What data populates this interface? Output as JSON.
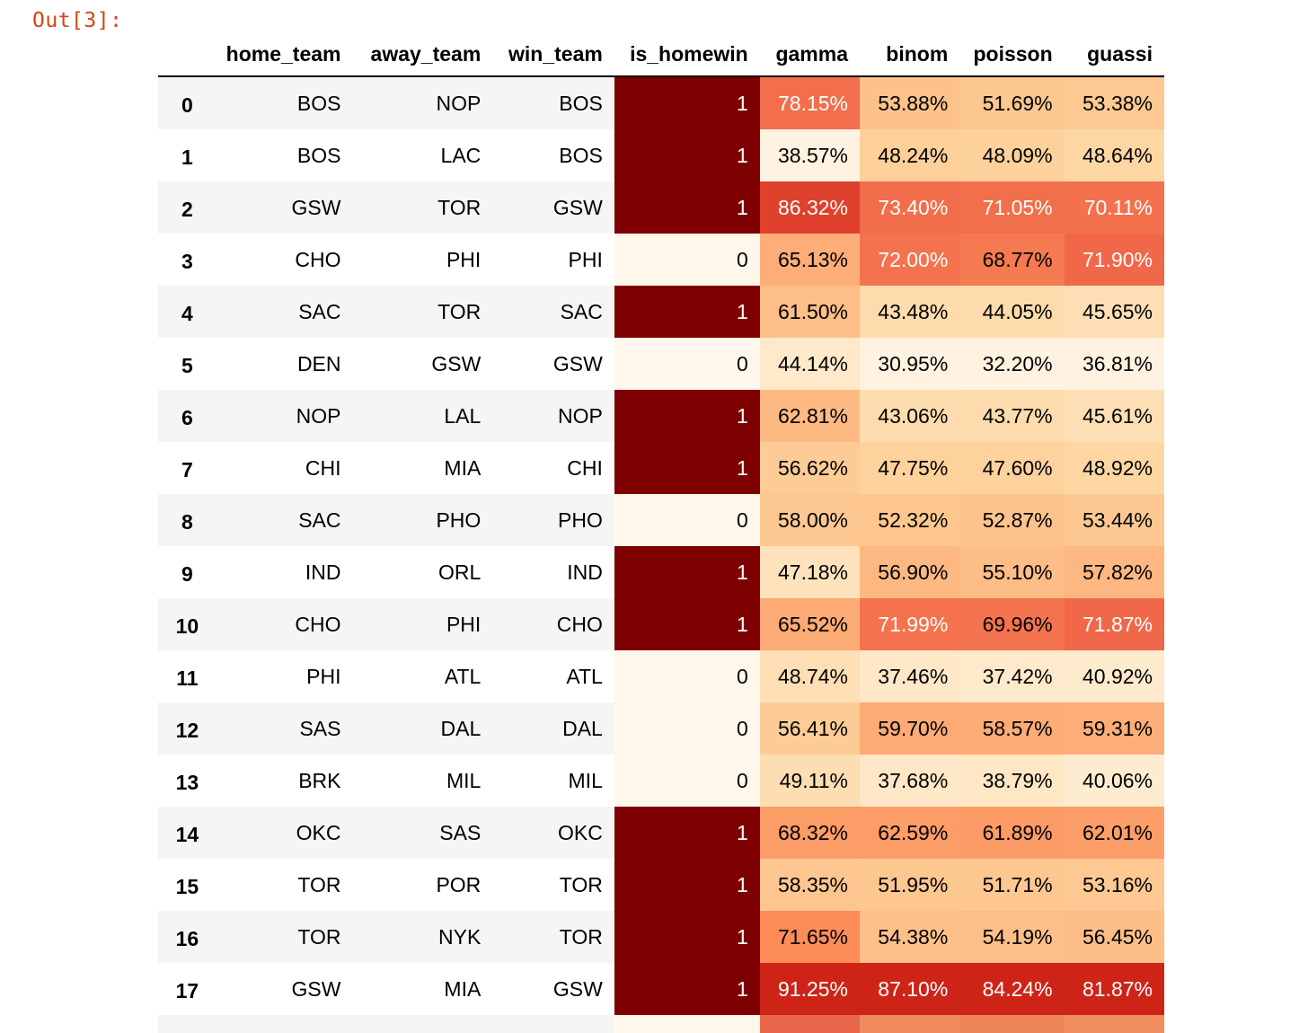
{
  "cell_prompt": "Out[3]:",
  "colors": {
    "prompt": "#D84315",
    "colormap": "OrRd",
    "homewin_true": "#7f0000",
    "homewin_false": "#fff7ec"
  },
  "columns": [
    "home_team",
    "away_team",
    "win_team",
    "is_homewin",
    "gamma",
    "binom",
    "poisson",
    "guassi"
  ],
  "rows": [
    {
      "index": "0",
      "home_team": "BOS",
      "away_team": "NOP",
      "win_team": "BOS",
      "is_homewin": "1",
      "gamma": "78.15%",
      "binom": "53.88%",
      "poisson": "51.69%",
      "guassi": "53.38%"
    },
    {
      "index": "1",
      "home_team": "BOS",
      "away_team": "LAC",
      "win_team": "BOS",
      "is_homewin": "1",
      "gamma": "38.57%",
      "binom": "48.24%",
      "poisson": "48.09%",
      "guassi": "48.64%"
    },
    {
      "index": "2",
      "home_team": "GSW",
      "away_team": "TOR",
      "win_team": "GSW",
      "is_homewin": "1",
      "gamma": "86.32%",
      "binom": "73.40%",
      "poisson": "71.05%",
      "guassi": "70.11%"
    },
    {
      "index": "3",
      "home_team": "CHO",
      "away_team": "PHI",
      "win_team": "PHI",
      "is_homewin": "0",
      "gamma": "65.13%",
      "binom": "72.00%",
      "poisson": "68.77%",
      "guassi": "71.90%"
    },
    {
      "index": "4",
      "home_team": "SAC",
      "away_team": "TOR",
      "win_team": "SAC",
      "is_homewin": "1",
      "gamma": "61.50%",
      "binom": "43.48%",
      "poisson": "44.05%",
      "guassi": "45.65%"
    },
    {
      "index": "5",
      "home_team": "DEN",
      "away_team": "GSW",
      "win_team": "GSW",
      "is_homewin": "0",
      "gamma": "44.14%",
      "binom": "30.95%",
      "poisson": "32.20%",
      "guassi": "36.81%"
    },
    {
      "index": "6",
      "home_team": "NOP",
      "away_team": "LAL",
      "win_team": "NOP",
      "is_homewin": "1",
      "gamma": "62.81%",
      "binom": "43.06%",
      "poisson": "43.77%",
      "guassi": "45.61%"
    },
    {
      "index": "7",
      "home_team": "CHI",
      "away_team": "MIA",
      "win_team": "CHI",
      "is_homewin": "1",
      "gamma": "56.62%",
      "binom": "47.75%",
      "poisson": "47.60%",
      "guassi": "48.92%"
    },
    {
      "index": "8",
      "home_team": "SAC",
      "away_team": "PHO",
      "win_team": "PHO",
      "is_homewin": "0",
      "gamma": "58.00%",
      "binom": "52.32%",
      "poisson": "52.87%",
      "guassi": "53.44%"
    },
    {
      "index": "9",
      "home_team": "IND",
      "away_team": "ORL",
      "win_team": "IND",
      "is_homewin": "1",
      "gamma": "47.18%",
      "binom": "56.90%",
      "poisson": "55.10%",
      "guassi": "57.82%"
    },
    {
      "index": "10",
      "home_team": "CHO",
      "away_team": "PHI",
      "win_team": "CHO",
      "is_homewin": "1",
      "gamma": "65.52%",
      "binom": "71.99%",
      "poisson": "69.96%",
      "guassi": "71.87%"
    },
    {
      "index": "11",
      "home_team": "PHI",
      "away_team": "ATL",
      "win_team": "ATL",
      "is_homewin": "0",
      "gamma": "48.74%",
      "binom": "37.46%",
      "poisson": "37.42%",
      "guassi": "40.92%"
    },
    {
      "index": "12",
      "home_team": "SAS",
      "away_team": "DAL",
      "win_team": "DAL",
      "is_homewin": "0",
      "gamma": "56.41%",
      "binom": "59.70%",
      "poisson": "58.57%",
      "guassi": "59.31%"
    },
    {
      "index": "13",
      "home_team": "BRK",
      "away_team": "MIL",
      "win_team": "MIL",
      "is_homewin": "0",
      "gamma": "49.11%",
      "binom": "37.68%",
      "poisson": "38.79%",
      "guassi": "40.06%"
    },
    {
      "index": "14",
      "home_team": "OKC",
      "away_team": "SAS",
      "win_team": "OKC",
      "is_homewin": "1",
      "gamma": "68.32%",
      "binom": "62.59%",
      "poisson": "61.89%",
      "guassi": "62.01%"
    },
    {
      "index": "15",
      "home_team": "TOR",
      "away_team": "POR",
      "win_team": "TOR",
      "is_homewin": "1",
      "gamma": "58.35%",
      "binom": "51.95%",
      "poisson": "51.71%",
      "guassi": "53.16%"
    },
    {
      "index": "16",
      "home_team": "TOR",
      "away_team": "NYK",
      "win_team": "TOR",
      "is_homewin": "1",
      "gamma": "71.65%",
      "binom": "54.38%",
      "poisson": "54.19%",
      "guassi": "56.45%"
    },
    {
      "index": "17",
      "home_team": "GSW",
      "away_team": "MIA",
      "win_team": "GSW",
      "is_homewin": "1",
      "gamma": "91.25%",
      "binom": "87.10%",
      "poisson": "84.24%",
      "guassi": "81.87%"
    }
  ]
}
